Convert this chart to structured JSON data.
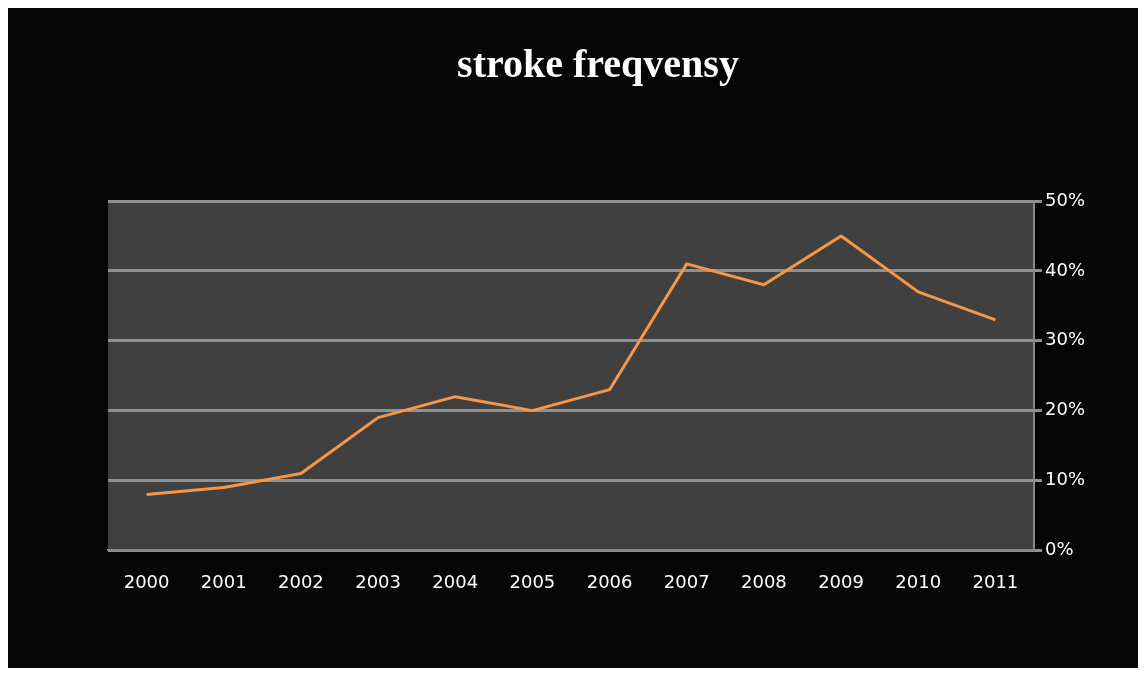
{
  "chart_data": {
    "type": "line",
    "title": "stroke freqvensy",
    "categories": [
      "2000",
      "2001",
      "2002",
      "2003",
      "2004",
      "2005",
      "2006",
      "2007",
      "2008",
      "2009",
      "2010",
      "2011"
    ],
    "series": [
      {
        "color": "#f79646",
        "values": [
          8,
          9,
          11,
          19,
          22,
          20,
          23,
          41,
          38,
          45,
          37,
          33
        ]
      }
    ],
    "ylim": [
      0,
      50
    ],
    "yticks": [
      {
        "value": 0,
        "label": "0%"
      },
      {
        "value": 10,
        "label": "10%"
      },
      {
        "value": 20,
        "label": "20%"
      },
      {
        "value": 30,
        "label": "30%"
      },
      {
        "value": 40,
        "label": "40%"
      },
      {
        "value": 50,
        "label": "50%"
      }
    ],
    "grid": "y",
    "legend": false,
    "marker": "none",
    "line_style": "solid"
  }
}
